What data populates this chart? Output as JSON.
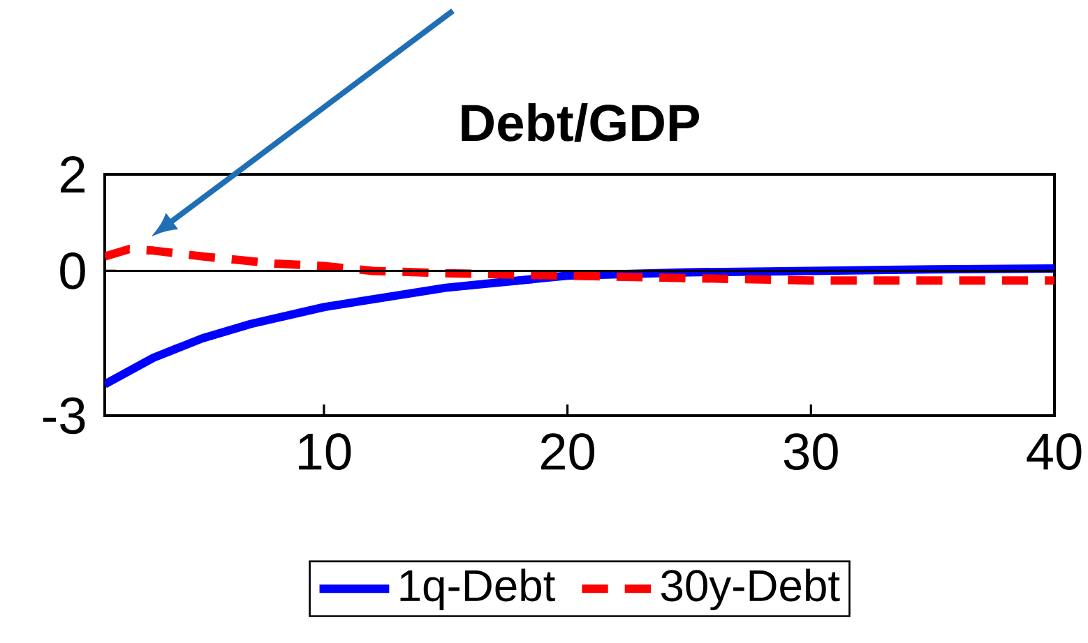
{
  "chart_data": {
    "type": "line",
    "title": "Debt/GDP",
    "xlim": [
      1,
      40
    ],
    "ylim": [
      -3,
      2
    ],
    "xticks": [
      10,
      20,
      30,
      40
    ],
    "yticks": [
      -3,
      0,
      2
    ],
    "legend": "bottom",
    "ref_lines": [
      {
        "axis": "y",
        "value": 0,
        "color": "#000000"
      }
    ],
    "series": [
      {
        "name": "1q-Debt",
        "color": "#0000ff",
        "line_style": "solid",
        "x": [
          1,
          3,
          5,
          7,
          10,
          15,
          20,
          25,
          30,
          35,
          40
        ],
        "values": [
          -2.35,
          -1.8,
          -1.4,
          -1.1,
          -0.75,
          -0.35,
          -0.1,
          -0.03,
          0,
          0.03,
          0.05
        ]
      },
      {
        "name": "30y-Debt",
        "color": "#ff0000",
        "line_style": "dashed",
        "x": [
          1,
          2,
          3,
          5,
          8,
          10,
          12,
          15,
          20,
          25,
          30,
          35,
          40
        ],
        "values": [
          0.3,
          0.45,
          0.42,
          0.3,
          0.15,
          0.1,
          0,
          -0.05,
          -0.1,
          -0.15,
          -0.2,
          -0.2,
          -0.2
        ]
      }
    ]
  }
}
